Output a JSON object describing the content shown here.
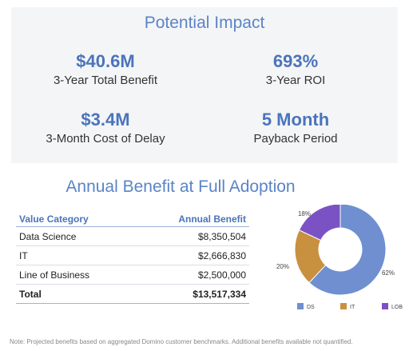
{
  "impact": {
    "title": "Potential Impact",
    "metrics": [
      {
        "value": "$40.6M",
        "label": "3-Year Total Benefit"
      },
      {
        "value": "693%",
        "label": "3-Year ROI"
      },
      {
        "value": "$3.4M",
        "label": "3-Month Cost of Delay"
      },
      {
        "value": "5 Month",
        "label": "Payback Period"
      }
    ]
  },
  "annual": {
    "title": "Annual Benefit at Full Adoption",
    "columns": [
      "Value Category",
      "Annual Benefit"
    ],
    "rows": [
      {
        "category": "Data Science",
        "benefit": "$8,350,504"
      },
      {
        "category": "IT",
        "benefit": "$2,666,830"
      },
      {
        "category": "Line of Business",
        "benefit": "$2,500,000"
      }
    ],
    "total": {
      "category": "Total",
      "benefit": "$13,517,334"
    }
  },
  "chart_data": {
    "type": "pie",
    "categories": [
      "DS",
      "IT",
      "LOB"
    ],
    "values": [
      62,
      20,
      18
    ],
    "value_labels": [
      "62%",
      "20%",
      "18%"
    ],
    "colors": [
      "#6f8fd1",
      "#c8913f",
      "#7b52c4"
    ],
    "legend_position": "bottom"
  },
  "footnote": "Note: Projected benefits based on aggregated Domino customer benchmarks. Additional benefits available not quantified."
}
